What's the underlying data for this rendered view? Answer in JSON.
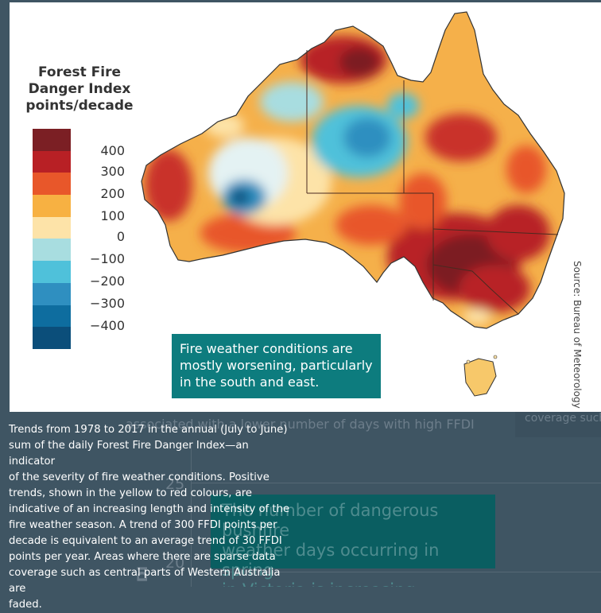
{
  "legend": {
    "title": "Forest Fire\nDanger Index\npoints/decade",
    "classes": [
      {
        "label": "400",
        "color": "#7b1f24"
      },
      {
        "label": "300",
        "color": "#b82025"
      },
      {
        "label": "200",
        "color": "#e8572a"
      },
      {
        "label": "100",
        "color": "#f7b142"
      },
      {
        "label": "0",
        "color": "#fde3a8"
      },
      {
        "label": "−100",
        "color": "#a8dde0"
      },
      {
        "label": "−200",
        "color": "#4fc1da"
      },
      {
        "label": "−300",
        "color": "#2f8fc0"
      },
      {
        "label": "−400",
        "color": "#0e6d9f"
      },
      {
        "label": "",
        "color": "#0b4e7a"
      }
    ]
  },
  "map": {
    "region": "Australia",
    "headline": "Fire weather conditions are\nmostly worsening, particularly\nin the south and east.",
    "source": "Source: Bureau of Meteorology"
  },
  "caption": "Trends from 1978 to 2017 in the annual (July to June)\nsum of the daily Forest Fire Danger Index—an indicator\nof the severity of fire weather conditions. Positive\ntrends, shown in the yellow to red colours, are\nindicative of an increasing length and intensity of the\nfire weather season. A trend of 300 FFDI points per\ndecade is equivalent to an average trend of 30 FFDI\npoints per year. Areas where there are sparse data\ncoverage such as central parts of Western Australia are\nfaded.",
  "background": {
    "fragment_1": "associated with a lower number of days with high FFDI",
    "fragment_2": "coverage such",
    "callout": "The number of dangerous bushfire\nweather days occurring in spring\nin Victoria is increasing.",
    "tick_25": "25",
    "tick_20": "20",
    "axis_fragment": "DI"
  }
}
